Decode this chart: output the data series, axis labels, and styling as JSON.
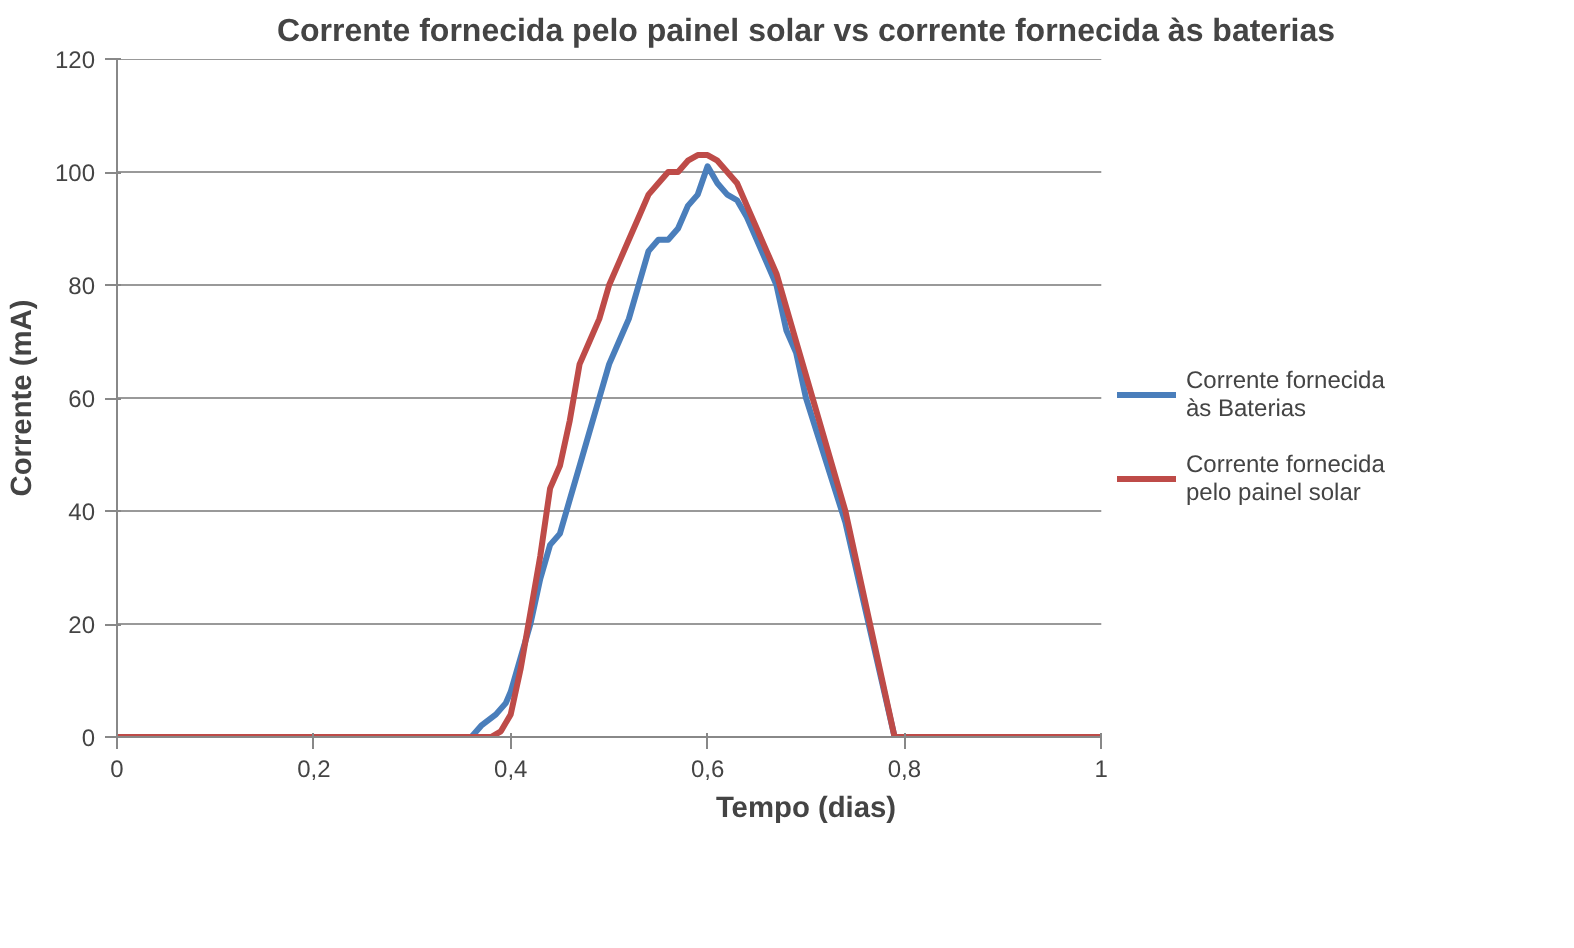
{
  "chart_data": {
    "type": "line",
    "title": "Corrente fornecida pelo painel solar vs corrente fornecida às baterias",
    "xlabel": "Tempo (dias)",
    "ylabel": "Corrente (mA)",
    "xlim": [
      0,
      1
    ],
    "xticks": [
      0,
      {
        "value": 0.2,
        "label": "0,2"
      },
      {
        "value": 0.4,
        "label": "0,4"
      },
      {
        "value": 0.6,
        "label": "0,6"
      },
      {
        "value": 0.8,
        "label": "0,8"
      },
      1
    ],
    "ylim": [
      0,
      120
    ],
    "yticks": [
      0,
      20,
      40,
      60,
      80,
      100,
      120
    ],
    "grid": "y",
    "legend": "right",
    "marker": "none",
    "line_style": "solid",
    "series": [
      {
        "name": "Corrente fornecida às Baterias",
        "color": "#4a7ebb",
        "x": [
          0,
          0.36,
          0.37,
          0.385,
          0.395,
          0.4,
          0.41,
          0.42,
          0.43,
          0.44,
          0.45,
          0.46,
          0.47,
          0.48,
          0.49,
          0.5,
          0.51,
          0.52,
          0.53,
          0.54,
          0.55,
          0.56,
          0.57,
          0.58,
          0.59,
          0.6,
          0.61,
          0.62,
          0.63,
          0.64,
          0.65,
          0.66,
          0.67,
          0.68,
          0.69,
          0.7,
          0.74,
          0.79,
          1
        ],
        "values": [
          0,
          0,
          2,
          4,
          6,
          8,
          14,
          20,
          28,
          34,
          36,
          42,
          48,
          54,
          60,
          66,
          70,
          74,
          80,
          86,
          88,
          88,
          90,
          94,
          96,
          101,
          98,
          96,
          95,
          92,
          88,
          84,
          80,
          72,
          68,
          60,
          38,
          0,
          0
        ]
      },
      {
        "name": "Corrente fornecida pelo painel solar",
        "color": "#be4b48",
        "x": [
          0,
          0.38,
          0.39,
          0.4,
          0.41,
          0.42,
          0.43,
          0.44,
          0.45,
          0.46,
          0.47,
          0.48,
          0.49,
          0.5,
          0.51,
          0.52,
          0.53,
          0.54,
          0.55,
          0.56,
          0.57,
          0.58,
          0.59,
          0.6,
          0.61,
          0.62,
          0.63,
          0.64,
          0.65,
          0.66,
          0.67,
          0.68,
          0.69,
          0.7,
          0.74,
          0.79,
          1
        ],
        "values": [
          0,
          0,
          1,
          4,
          12,
          22,
          32,
          44,
          48,
          56,
          66,
          70,
          74,
          80,
          84,
          88,
          92,
          96,
          98,
          100,
          100,
          102,
          103,
          103,
          102,
          100,
          98,
          94,
          90,
          86,
          82,
          76,
          70,
          64,
          40,
          0,
          0
        ]
      }
    ]
  }
}
